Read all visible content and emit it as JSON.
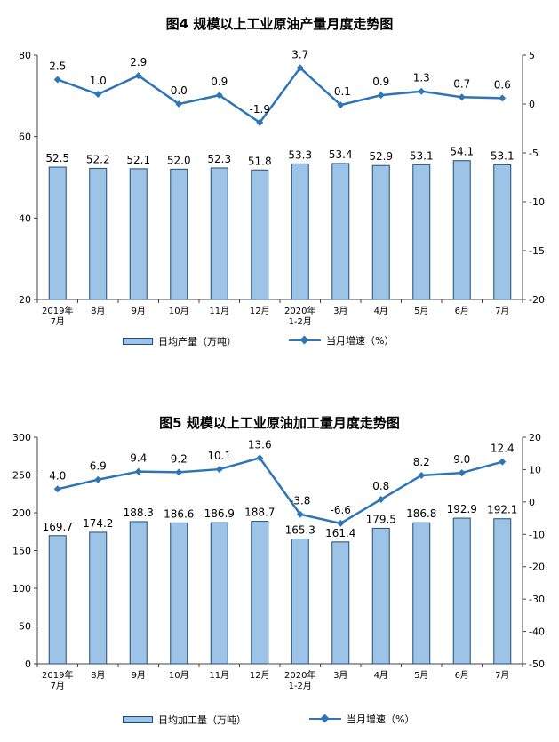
{
  "chart_data": [
    {
      "type": "bar",
      "title": "图4  规模以上工业原油产量月度走势图",
      "categories": [
        [
          "2019年",
          "7月"
        ],
        [
          "8月"
        ],
        [
          "9月"
        ],
        [
          "10月"
        ],
        [
          "11月"
        ],
        [
          "12月"
        ],
        [
          "2020年",
          "1-2月"
        ],
        [
          "3月"
        ],
        [
          "4月"
        ],
        [
          "5月"
        ],
        [
          "6月"
        ],
        [
          "7月"
        ]
      ],
      "series": [
        {
          "name": "日均产量（万吨）",
          "type": "bar",
          "axis": "left",
          "values": [
            52.5,
            52.2,
            52.1,
            52.0,
            52.3,
            51.8,
            53.3,
            53.4,
            52.9,
            53.1,
            54.1,
            53.1
          ],
          "labels": [
            "52.5",
            "52.2",
            "52.1",
            "52.0",
            "52.3",
            "51.8",
            "53.3",
            "53.4",
            "52.9",
            "53.1",
            "54.1",
            "53.1"
          ]
        },
        {
          "name": "当月增速（%）",
          "type": "line",
          "axis": "right",
          "values": [
            2.5,
            1.0,
            2.9,
            0.0,
            0.9,
            -1.9,
            3.7,
            -0.1,
            0.9,
            1.3,
            0.7,
            0.6
          ],
          "labels": [
            "2.5",
            "1.0",
            "2.9",
            "0.0",
            "0.9",
            "-1.9",
            "3.7",
            "-0.1",
            "0.9",
            "1.3",
            "0.7",
            "0.6"
          ]
        }
      ],
      "y_left": {
        "lim": [
          20,
          80
        ],
        "ticks": [
          "20",
          "40",
          "60",
          "80"
        ]
      },
      "y_right": {
        "lim": [
          -20,
          5
        ],
        "ticks": [
          "-20",
          "-15",
          "-10",
          "-5",
          "0",
          "5"
        ]
      },
      "legend_position": "bottom",
      "colors": {
        "bar_fill": "#9DC3E6",
        "bar_stroke": "#1F4E79",
        "line": "#2E75B6"
      }
    },
    {
      "type": "bar",
      "title": "图5  规模以上工业原油加工量月度走势图",
      "categories": [
        [
          "2019年",
          "7月"
        ],
        [
          "8月"
        ],
        [
          "9月"
        ],
        [
          "10月"
        ],
        [
          "11月"
        ],
        [
          "12月"
        ],
        [
          "2020年",
          "1-2月"
        ],
        [
          "3月"
        ],
        [
          "4月"
        ],
        [
          "5月"
        ],
        [
          "6月"
        ],
        [
          "7月"
        ]
      ],
      "series": [
        {
          "name": "日均加工量（万吨）",
          "type": "bar",
          "axis": "left",
          "values": [
            169.7,
            174.2,
            188.3,
            186.6,
            186.9,
            188.7,
            165.3,
            161.4,
            179.5,
            186.8,
            192.9,
            192.1
          ],
          "labels": [
            "169.7",
            "174.2",
            "188.3",
            "186.6",
            "186.9",
            "188.7",
            "165.3",
            "161.4",
            "179.5",
            "186.8",
            "192.9",
            "192.1"
          ]
        },
        {
          "name": "当月增速（%）",
          "type": "line",
          "axis": "right",
          "values": [
            4.0,
            6.9,
            9.4,
            9.2,
            10.1,
            13.6,
            -3.8,
            -6.6,
            0.8,
            8.2,
            9.0,
            12.4
          ],
          "labels": [
            "4.0",
            "6.9",
            "9.4",
            "9.2",
            "10.1",
            "13.6",
            "-3.8",
            "-6.6",
            "0.8",
            "8.2",
            "9.0",
            "12.4"
          ]
        }
      ],
      "y_left": {
        "lim": [
          0,
          300
        ],
        "ticks": [
          "0",
          "50",
          "100",
          "150",
          "200",
          "250",
          "300"
        ]
      },
      "y_right": {
        "lim": [
          -50,
          20
        ],
        "ticks": [
          "-50",
          "-40",
          "-30",
          "-20",
          "-10",
          "0",
          "10",
          "20"
        ]
      },
      "legend_position": "bottom",
      "colors": {
        "bar_fill": "#9DC3E6",
        "bar_stroke": "#1F4E79",
        "line": "#2E75B6"
      }
    }
  ]
}
